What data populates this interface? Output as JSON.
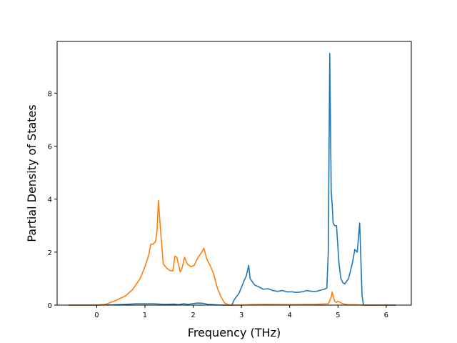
{
  "chart_data": {
    "type": "line",
    "xlabel": "Frequency (THz)",
    "ylabel": "Partial Density of States",
    "xlim": [
      -0.82,
      6.52
    ],
    "ylim": [
      0,
      9.95
    ],
    "xticks": [
      0,
      1,
      2,
      3,
      4,
      5,
      6
    ],
    "yticks": [
      0,
      2,
      4,
      6,
      8
    ],
    "grid": false,
    "legend": "none",
    "series": [
      {
        "color": "#1f77b4",
        "x": [
          -0.58,
          0.0,
          0.3,
          0.6,
          0.8,
          1.0,
          1.2,
          1.4,
          1.6,
          1.7,
          1.8,
          1.9,
          2.0,
          2.1,
          2.2,
          2.3,
          2.4,
          2.5,
          2.6,
          2.7,
          2.8,
          2.85,
          2.95,
          3.05,
          3.1,
          3.15,
          3.18,
          3.22,
          3.28,
          3.35,
          3.45,
          3.55,
          3.65,
          3.75,
          3.85,
          3.95,
          4.05,
          4.15,
          4.25,
          4.35,
          4.45,
          4.55,
          4.65,
          4.72,
          4.77,
          4.8,
          4.83,
          4.86,
          4.88,
          4.9,
          4.93,
          4.97,
          5.02,
          5.06,
          5.1,
          5.14,
          5.18,
          5.22,
          5.26,
          5.3,
          5.35,
          5.4,
          5.45,
          5.5,
          5.53,
          5.56,
          5.58,
          5.6,
          5.63,
          5.68,
          6.2
        ],
        "y": [
          0.0,
          0.0,
          0.01,
          0.03,
          0.05,
          0.05,
          0.05,
          0.03,
          0.04,
          0.02,
          0.05,
          0.03,
          0.06,
          0.08,
          0.07,
          0.03,
          0.02,
          0.01,
          0.0,
          0.0,
          0.0,
          0.2,
          0.45,
          0.9,
          1.1,
          1.5,
          1.0,
          0.9,
          0.75,
          0.7,
          0.6,
          0.62,
          0.55,
          0.52,
          0.55,
          0.5,
          0.5,
          0.48,
          0.5,
          0.55,
          0.52,
          0.52,
          0.57,
          0.6,
          0.65,
          2.0,
          9.5,
          4.3,
          3.8,
          3.1,
          3.0,
          3.0,
          1.6,
          1.0,
          0.85,
          0.8,
          0.9,
          1.0,
          1.3,
          1.6,
          2.1,
          2.0,
          3.1,
          0.35,
          0.0,
          0.0,
          0.0,
          0.0,
          0.0,
          0.0,
          0.0
        ]
      },
      {
        "color": "#ff7f0e",
        "x": [
          -0.58,
          0.0,
          0.2,
          0.4,
          0.6,
          0.75,
          0.9,
          1.0,
          1.08,
          1.12,
          1.17,
          1.22,
          1.25,
          1.28,
          1.32,
          1.38,
          1.45,
          1.52,
          1.58,
          1.62,
          1.66,
          1.7,
          1.73,
          1.77,
          1.82,
          1.88,
          1.95,
          2.02,
          2.1,
          2.18,
          2.22,
          2.28,
          2.35,
          2.42,
          2.5,
          2.58,
          2.65,
          2.75,
          2.9,
          3.0,
          3.2,
          3.5,
          4.0,
          4.5,
          4.8,
          4.86,
          4.88,
          4.9,
          4.93,
          4.97,
          5.0,
          5.05,
          5.1,
          5.2,
          5.6,
          6.2
        ],
        "y": [
          0.0,
          0.0,
          0.04,
          0.18,
          0.35,
          0.6,
          1.0,
          1.45,
          1.9,
          2.3,
          2.3,
          2.4,
          2.8,
          3.95,
          2.9,
          1.55,
          1.4,
          1.3,
          1.3,
          1.85,
          1.8,
          1.5,
          1.25,
          1.4,
          1.8,
          1.55,
          1.45,
          1.5,
          1.8,
          2.0,
          2.15,
          1.75,
          1.5,
          1.2,
          0.65,
          0.3,
          0.08,
          0.0,
          0.0,
          0.0,
          0.02,
          0.03,
          0.02,
          0.03,
          0.05,
          0.3,
          0.5,
          0.35,
          0.15,
          0.1,
          0.15,
          0.1,
          0.05,
          0.02,
          0.0,
          0.0
        ]
      }
    ]
  }
}
